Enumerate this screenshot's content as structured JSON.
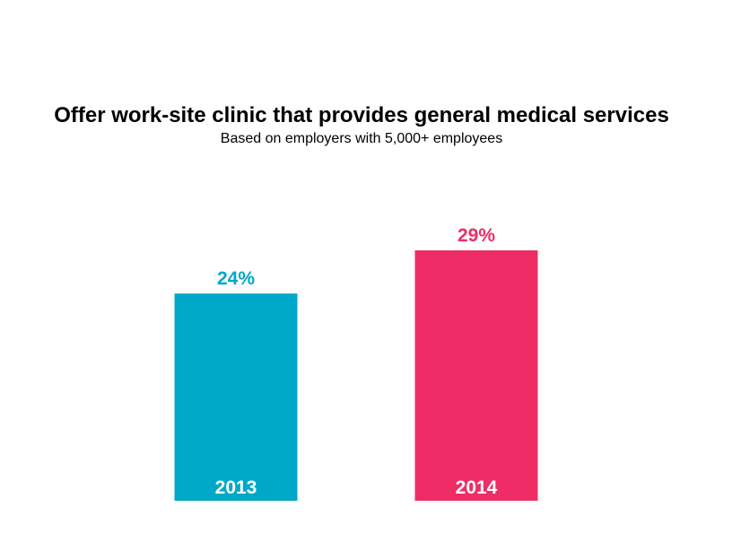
{
  "chart_data": {
    "type": "bar",
    "title": "Offer work-site clinic that provides general medical services",
    "subtitle": "Based on employers with 5,000+ employees",
    "categories": [
      "2013",
      "2014"
    ],
    "values": [
      24,
      29
    ],
    "value_labels": [
      "24%",
      "29%"
    ],
    "colors": [
      "#00A8C8",
      "#EE2D67"
    ],
    "xlabel": "",
    "ylabel": "",
    "ylim": [
      0,
      29
    ],
    "grid": false,
    "legend": "none"
  }
}
